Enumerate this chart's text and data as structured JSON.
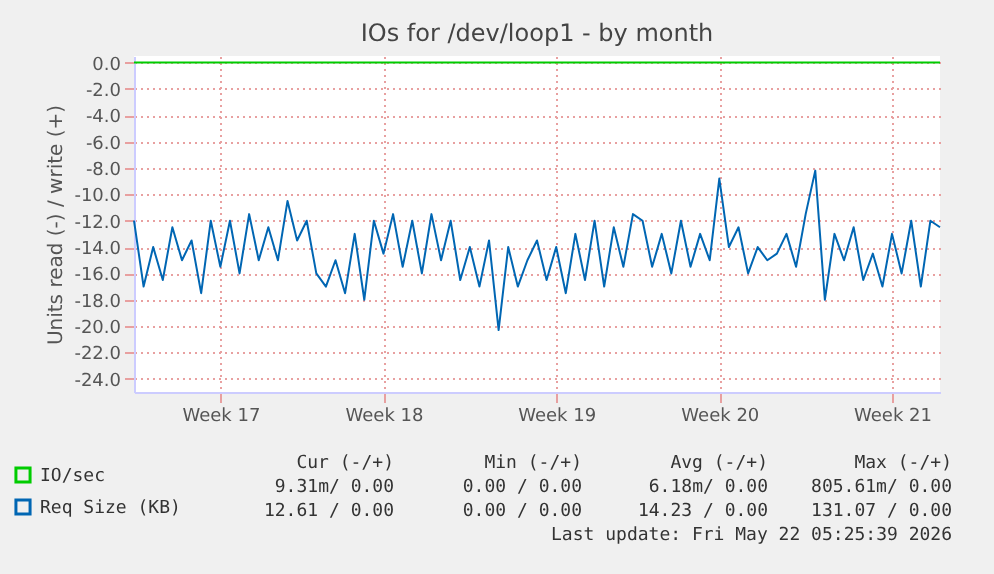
{
  "chart_data": {
    "type": "line",
    "title": "IOs for /dev/loop1 - by month",
    "ylabel": "Units read (-) / write (+)",
    "categories": [
      null,
      null,
      null,
      null,
      null,
      null,
      null,
      null,
      null,
      "Week 17",
      null,
      null,
      null,
      null,
      null,
      null,
      null,
      null,
      null,
      null,
      null,
      null,
      null,
      null,
      null,
      null,
      "Week 18",
      null,
      null,
      null,
      null,
      null,
      null,
      null,
      null,
      null,
      null,
      null,
      null,
      null,
      null,
      null,
      null,
      null,
      "Week 19",
      null,
      null,
      null,
      null,
      null,
      null,
      null,
      null,
      null,
      null,
      null,
      null,
      null,
      null,
      null,
      null,
      "Week 20",
      null,
      null,
      null,
      null,
      null,
      null,
      null,
      null,
      null,
      null,
      null,
      null,
      null,
      null,
      null,
      null,
      null,
      "Week 21",
      null,
      null,
      null,
      null,
      null
    ],
    "series": [
      {
        "name": "IO/sec",
        "color": "#00cc00",
        "values": [
          0,
          0,
          0,
          0,
          0,
          0,
          0,
          0,
          0,
          0,
          0,
          0,
          0,
          0,
          0,
          0,
          0,
          0,
          0,
          0,
          0,
          0,
          0,
          0,
          0,
          0,
          0,
          0,
          0,
          0,
          0,
          0,
          0,
          0,
          0,
          0,
          0,
          0,
          0,
          0,
          0,
          0,
          0,
          0,
          0,
          0,
          0,
          0,
          0,
          0,
          0,
          0,
          0,
          0,
          0,
          0,
          0,
          0,
          0,
          0,
          0,
          0,
          0,
          0,
          0,
          0,
          0,
          0,
          0,
          0,
          0,
          0,
          0,
          0,
          0,
          0,
          0,
          0,
          0,
          0,
          0,
          0,
          0,
          0,
          0
        ]
      },
      {
        "name": "Req Size (KB)",
        "color": "#0066b3",
        "values": [
          -12,
          -17,
          -14,
          -16.5,
          -12.5,
          -15,
          -13.5,
          -17.5,
          -12,
          -15.5,
          -12,
          -16,
          -11.5,
          -15,
          -12.5,
          -15,
          -10.5,
          -13.5,
          -12,
          -16,
          -17,
          -15,
          -17.5,
          -13,
          -18,
          -12,
          -14.5,
          -11.5,
          -15.5,
          -12,
          -16,
          -11.5,
          -15,
          -12,
          -16.5,
          -14,
          -17,
          -13.5,
          -20.3,
          -14,
          -17,
          -15,
          -13.5,
          -16.5,
          -14,
          -17.5,
          -13,
          -16.5,
          -12,
          -17,
          -12.5,
          -15.5,
          -11.5,
          -12,
          -15.5,
          -13,
          -16,
          -12,
          -15.5,
          -13,
          -15,
          -8.8,
          -14,
          -12.5,
          -16,
          -14,
          -15,
          -14.5,
          -13,
          -15.5,
          -11.5,
          -8.2,
          -18,
          -13,
          -15,
          -12.5,
          -16.5,
          -14.5,
          -17,
          -13,
          -16,
          -12,
          -17,
          -12,
          -12.5
        ]
      }
    ],
    "ylim": [
      -25,
      0.5
    ],
    "yticks": [
      {
        "value": 0,
        "label": "0.0"
      },
      {
        "value": -2,
        "label": "-2.0"
      },
      {
        "value": -4,
        "label": "-4.0"
      },
      {
        "value": -6,
        "label": "-6.0"
      },
      {
        "value": -8,
        "label": "-8.0"
      },
      {
        "value": -10,
        "label": "-10.0"
      },
      {
        "value": -12,
        "label": "-12.0"
      },
      {
        "value": -14,
        "label": "-14.0"
      },
      {
        "value": -16,
        "label": "-16.0"
      },
      {
        "value": -18,
        "label": "-18.0"
      },
      {
        "value": -20,
        "label": "-20.0"
      },
      {
        "value": -22,
        "label": "-22.0"
      },
      {
        "value": -24,
        "label": "-24.0"
      }
    ],
    "grid": true,
    "legend": "bottom left",
    "annotations": [
      "Cur (-/+)",
      "Min (-/+)",
      "Avg (-/+)",
      "Max (-/+)",
      "9.31m/ 0.00",
      "0.00 / 0.00",
      "6.18m/ 0.00",
      "805.61m/ 0.00",
      "12.61 / 0.00",
      "0.00 / 0.00",
      "14.23 / 0.00",
      "131.07 / 0.00",
      "Last update: Fri May 22 05:25:39 2026"
    ]
  }
}
